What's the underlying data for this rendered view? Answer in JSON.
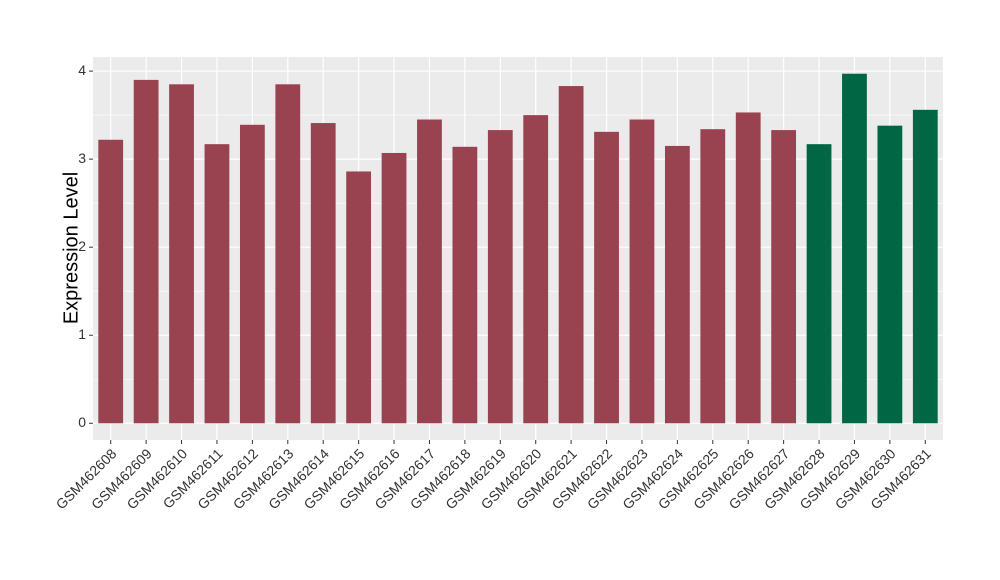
{
  "chart_data": {
    "type": "bar",
    "y_label": "Expression Level",
    "categories": [
      "GSM462608",
      "GSM462609",
      "GSM462610",
      "GSM462611",
      "GSM462612",
      "GSM462613",
      "GSM462614",
      "GSM462615",
      "GSM462616",
      "GSM462617",
      "GSM462618",
      "GSM462619",
      "GSM462620",
      "GSM462621",
      "GSM462622",
      "GSM462623",
      "GSM462624",
      "GSM462625",
      "GSM462626",
      "GSM462627",
      "GSM462628",
      "GSM462629",
      "GSM462630",
      "GSM462631"
    ],
    "values": [
      3.22,
      3.9,
      3.85,
      3.17,
      3.39,
      3.85,
      3.41,
      2.86,
      3.07,
      3.45,
      3.14,
      3.33,
      3.5,
      3.83,
      3.31,
      3.45,
      3.15,
      3.34,
      3.53,
      3.33,
      3.17,
      3.97,
      3.38,
      3.56
    ],
    "colors": [
      "#994250",
      "#994250",
      "#994250",
      "#994250",
      "#994250",
      "#994250",
      "#994250",
      "#994250",
      "#994250",
      "#994250",
      "#994250",
      "#994250",
      "#994250",
      "#994250",
      "#994250",
      "#994250",
      "#994250",
      "#994250",
      "#994250",
      "#994250",
      "#006644",
      "#006644",
      "#006644",
      "#006644"
    ],
    "ylim": [
      -0.19,
      4.16
    ],
    "yticks": [
      0,
      1,
      2,
      3,
      4
    ],
    "grid": true
  }
}
